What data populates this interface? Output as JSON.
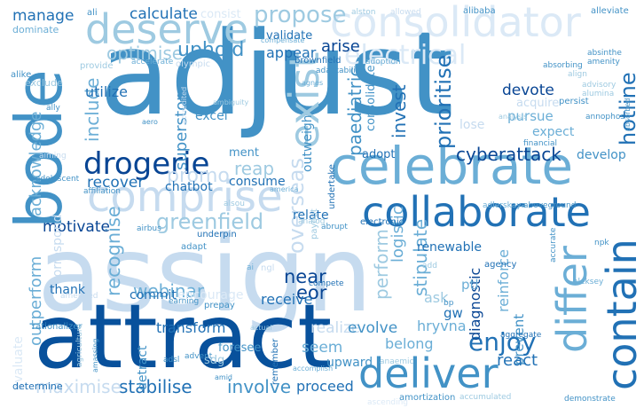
{
  "word_cloud": {
    "colors": {
      "dark": "#1f5fa6",
      "mid": "#4a8fc8",
      "light": "#9cc4e2",
      "pale": "#c8ddf0",
      "faint": "#dfe9f5"
    },
    "words": [
      {
        "text": "assign",
        "color": "#c6dbef"
      },
      {
        "text": "adjust",
        "color": "#4292c6"
      },
      {
        "text": "attract",
        "color": "#08519c"
      },
      {
        "text": "celebrate",
        "color": "#6baed6"
      },
      {
        "text": "collaborate",
        "color": "#2171b5"
      },
      {
        "text": "consolidator",
        "color": "#dbe9f6"
      },
      {
        "text": "bode",
        "color": "#4292c6"
      },
      {
        "text": "deserve",
        "color": "#9ecae1"
      },
      {
        "text": "comprise",
        "color": "#c6dbef"
      },
      {
        "text": "deliver",
        "color": "#4292c6"
      },
      {
        "text": "contain",
        "color": "#2171b5"
      },
      {
        "text": "differ",
        "color": "#6baed6"
      },
      {
        "text": "drogerie",
        "color": "#084594"
      },
      {
        "text": "electrical",
        "color": "#dbe9f6"
      },
      {
        "text": "exist",
        "color": "#9ecae1"
      },
      {
        "text": "enjoy",
        "color": "#2171b5"
      },
      {
        "text": "manage",
        "color": "#2171b5"
      },
      {
        "text": "calculate",
        "color": "#2171b5"
      },
      {
        "text": "propose",
        "color": "#9ecae1"
      },
      {
        "text": "consist",
        "color": "#dbe9f6"
      },
      {
        "text": "optimise",
        "color": "#9ecae1"
      },
      {
        "text": "uphold",
        "color": "#4292c6"
      },
      {
        "text": "validate",
        "color": "#2171b5"
      },
      {
        "text": "arise",
        "color": "#084594"
      },
      {
        "text": "appear",
        "color": "#2171b5"
      },
      {
        "text": "outweigh",
        "color": "#4292c6"
      },
      {
        "text": "hotline",
        "color": "#2171b5"
      },
      {
        "text": "prioritise",
        "color": "#2171b5"
      },
      {
        "text": "invest",
        "color": "#2171b5"
      },
      {
        "text": "devote",
        "color": "#084594"
      },
      {
        "text": "acquire",
        "color": "#c6dbef"
      },
      {
        "text": "pursue",
        "color": "#6baed6"
      },
      {
        "text": "expect",
        "color": "#6baed6"
      },
      {
        "text": "cyberattack",
        "color": "#084594"
      },
      {
        "text": "develop",
        "color": "#4292c6"
      },
      {
        "text": "overseas",
        "color": "#c6dbef"
      },
      {
        "text": "paediatric",
        "color": "#4292c6"
      },
      {
        "text": "consolidate",
        "color": "#4292c6"
      },
      {
        "text": "include",
        "color": "#6baed6"
      },
      {
        "text": "utilize",
        "color": "#2171b5"
      },
      {
        "text": "superstore",
        "color": "#4292c6"
      },
      {
        "text": "excel",
        "color": "#4292c6"
      },
      {
        "text": "recover",
        "color": "#2171b5"
      },
      {
        "text": "promo",
        "color": "#c6dbef"
      },
      {
        "text": "reap",
        "color": "#9ecae1"
      },
      {
        "text": "chatbot",
        "color": "#2171b5"
      },
      {
        "text": "consume",
        "color": "#2171b5"
      },
      {
        "text": "motivate",
        "color": "#084594"
      },
      {
        "text": "greenfield",
        "color": "#9ecae1"
      },
      {
        "text": "recognise",
        "color": "#6baed6"
      },
      {
        "text": "near",
        "color": "#084594"
      },
      {
        "text": "eor",
        "color": "#084594"
      },
      {
        "text": "receive",
        "color": "#2171b5"
      },
      {
        "text": "perform",
        "color": "#9ecae1"
      },
      {
        "text": "logistic",
        "color": "#6baed6"
      },
      {
        "text": "stipulate",
        "color": "#6baed6"
      },
      {
        "text": "diagnostic",
        "color": "#084594"
      },
      {
        "text": "reinforce",
        "color": "#6baed6"
      },
      {
        "text": "prevent",
        "color": "#4292c6"
      },
      {
        "text": "renewable",
        "color": "#2171b5"
      },
      {
        "text": "relate",
        "color": "#2171b5"
      },
      {
        "text": "acknowledge",
        "color": "#6baed6"
      },
      {
        "text": "outperform",
        "color": "#6baed6"
      },
      {
        "text": "correspond",
        "color": "#c6dbef"
      },
      {
        "text": "thank",
        "color": "#2171b5"
      },
      {
        "text": "webinar",
        "color": "#6baed6"
      },
      {
        "text": "commit",
        "color": "#2171b5"
      },
      {
        "text": "encourage",
        "color": "#dbe9f6"
      },
      {
        "text": "transform",
        "color": "#2171b5"
      },
      {
        "text": "realize",
        "color": "#c6dbef"
      },
      {
        "text": "evolve",
        "color": "#4292c6"
      },
      {
        "text": "hryvna",
        "color": "#6baed6"
      },
      {
        "text": "belong",
        "color": "#6baed6"
      },
      {
        "text": "seem",
        "color": "#6baed6"
      },
      {
        "text": "upward",
        "color": "#4292c6"
      },
      {
        "text": "react",
        "color": "#2171b5"
      },
      {
        "text": "stabilise",
        "color": "#2171b5"
      },
      {
        "text": "involve",
        "color": "#4292c6"
      },
      {
        "text": "proceed",
        "color": "#2171b5"
      },
      {
        "text": "maximise",
        "color": "#c6dbef"
      },
      {
        "text": "evaluate",
        "color": "#dbe9f6"
      },
      {
        "text": "determine",
        "color": "#2171b5"
      },
      {
        "text": "rationalizer",
        "color": "#4292c6"
      },
      {
        "text": "detract",
        "color": "#4292c6"
      },
      {
        "text": "sdg",
        "color": "#9ecae1"
      },
      {
        "text": "foresee",
        "color": "#4292c6"
      },
      {
        "text": "ptl",
        "color": "#6baed6"
      },
      {
        "text": "gw",
        "color": "#2171b5"
      },
      {
        "text": "ask",
        "color": "#9ecae1"
      },
      {
        "text": "prepay",
        "color": "#4292c6"
      },
      {
        "text": "undertake",
        "color": "#2171b5"
      },
      {
        "text": "adopt",
        "color": "#2171b5"
      },
      {
        "text": "ment",
        "color": "#4292c6"
      },
      {
        "text": "payout",
        "color": "#9ecae1"
      },
      {
        "text": "underpin",
        "color": "#2171b5"
      },
      {
        "text": "adapt",
        "color": "#4292c6"
      },
      {
        "text": "earning",
        "color": "#4292c6"
      },
      {
        "text": "brownfield",
        "color": "#2171b5"
      },
      {
        "text": "electronic",
        "color": "#2171b5"
      },
      {
        "text": "financial",
        "color": "#4292c6"
      },
      {
        "text": "persist",
        "color": "#4292c6"
      },
      {
        "text": "remember",
        "color": "#2171b5"
      },
      {
        "text": "compete",
        "color": "#2171b5"
      },
      {
        "text": "analysis",
        "color": "#9ecae1"
      },
      {
        "text": "ali",
        "color": "#4292c6"
      },
      {
        "text": "alston",
        "color": "#9ecae1"
      },
      {
        "text": "allowed",
        "color": "#c6dbef"
      },
      {
        "text": "alibaba",
        "color": "#4292c6"
      },
      {
        "text": "alleviate",
        "color": "#4292c6"
      },
      {
        "text": "dominate",
        "color": "#6baed6"
      },
      {
        "text": "alike",
        "color": "#4292c6"
      },
      {
        "text": "exclude",
        "color": "#9ecae1"
      },
      {
        "text": "provide",
        "color": "#9ecae1"
      },
      {
        "text": "accelerate",
        "color": "#6baed6"
      },
      {
        "text": "olympic",
        "color": "#c6dbef"
      },
      {
        "text": "compensate",
        "color": "#6baed6"
      },
      {
        "text": "adaptability",
        "color": "#4292c6"
      },
      {
        "text": "adoption",
        "color": "#6baed6"
      },
      {
        "text": "absinthe",
        "color": "#4292c6"
      },
      {
        "text": "amenity",
        "color": "#4292c6"
      },
      {
        "text": "absorbing",
        "color": "#4292c6"
      },
      {
        "text": "align",
        "color": "#9ecae1"
      },
      {
        "text": "advisory",
        "color": "#9ecae1"
      },
      {
        "text": "alumina",
        "color": "#9ecae1"
      },
      {
        "text": "agnes",
        "color": "#6baed6"
      },
      {
        "text": "ally",
        "color": "#4292c6"
      },
      {
        "text": "aero",
        "color": "#4292c6"
      },
      {
        "text": "ambiguity",
        "color": "#9ecae1"
      },
      {
        "text": "accredited",
        "color": "#c6dbef"
      },
      {
        "text": "aiming",
        "color": "#c6dbef"
      },
      {
        "text": "adolescent",
        "color": "#4292c6"
      },
      {
        "text": "affiliation",
        "color": "#4292c6"
      },
      {
        "text": "america",
        "color": "#6baed6"
      },
      {
        "text": "airbus",
        "color": "#4292c6"
      },
      {
        "text": "alsou",
        "color": "#9ecae1"
      },
      {
        "text": "abrupt",
        "color": "#4292c6"
      },
      {
        "text": "analog",
        "color": "#9ecae1"
      },
      {
        "text": "adlerskaya",
        "color": "#6baed6"
      },
      {
        "text": "aboveground",
        "color": "#4292c6"
      },
      {
        "text": "amended",
        "color": "#c6dbef"
      },
      {
        "text": "ngl",
        "color": "#c6dbef"
      },
      {
        "text": "agency",
        "color": "#2171b5"
      },
      {
        "text": "aleksey",
        "color": "#6baed6"
      },
      {
        "text": "accurate",
        "color": "#4292c6"
      },
      {
        "text": "npk",
        "color": "#4292c6"
      },
      {
        "text": "add",
        "color": "#9ecae1"
      },
      {
        "text": "bp",
        "color": "#4292c6"
      },
      {
        "text": "aggregate",
        "color": "#2171b5"
      },
      {
        "text": "anaemic",
        "color": "#9ecae1"
      },
      {
        "text": "actual",
        "color": "#9ecae1"
      },
      {
        "text": "advent",
        "color": "#4292c6"
      },
      {
        "text": "adsl",
        "color": "#4292c6"
      },
      {
        "text": "amassing",
        "color": "#4292c6"
      },
      {
        "text": "amid",
        "color": "#4292c6"
      },
      {
        "text": "accomplish",
        "color": "#6baed6"
      },
      {
        "text": "amortization",
        "color": "#4292c6"
      },
      {
        "text": "accumulated",
        "color": "#9ecae1"
      },
      {
        "text": "demonstrate",
        "color": "#4292c6"
      },
      {
        "text": "ascending",
        "color": "#dbe9f6"
      },
      {
        "text": "agriculture",
        "color": "#9ecae1"
      },
      {
        "text": "ai",
        "color": "#6baed6"
      },
      {
        "text": "lose",
        "color": "#c6dbef"
      },
      {
        "text": "absorbed",
        "color": "#4292c6"
      },
      {
        "text": "annophos",
        "color": "#4292c6"
      }
    ]
  }
}
